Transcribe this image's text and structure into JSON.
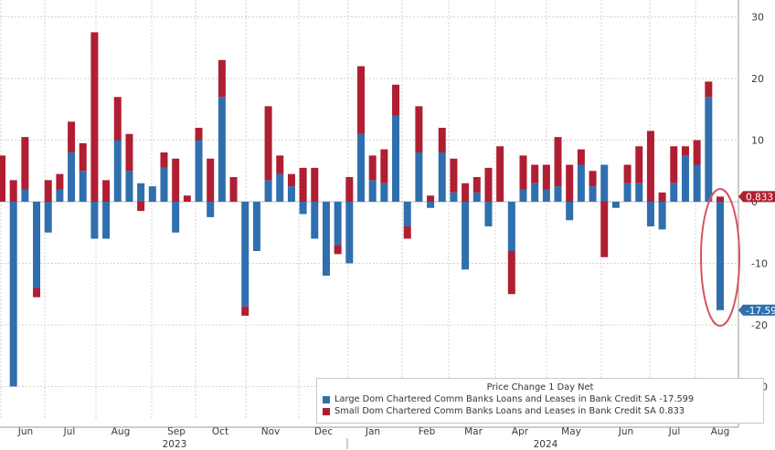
{
  "chart_data": {
    "type": "bar",
    "stacked": true,
    "title": "",
    "xlabel": "",
    "ylabel": "",
    "ylim": [
      -35,
      31
    ],
    "y_ticks": [
      30,
      20,
      10,
      0,
      -10,
      -20,
      -30
    ],
    "grid": true,
    "legend_placement": "bottom-right",
    "legend_title": "Price Change 1 Day Net",
    "x_month_labels": [
      "Jun",
      "Jul",
      "Aug",
      "Sep",
      "Oct",
      "Nov",
      "Dec",
      "Jan",
      "Feb",
      "Mar",
      "Apr",
      "May",
      "Jun",
      "Jul",
      "Aug"
    ],
    "x_year_labels": [
      "2023",
      "2024"
    ],
    "series": [
      {
        "name": "Large Dom Chartered Comm Banks Loans and Leases in Bank Credit SA",
        "last_value_label": "-17.599",
        "color": "#2f6fae",
        "values": [
          0,
          -30,
          2,
          -14,
          -5,
          2,
          8,
          5,
          -6,
          -6,
          10,
          5,
          3,
          2.5,
          5.5,
          -5,
          0,
          10,
          -2.5,
          17,
          0,
          -17,
          -8,
          3.5,
          4.5,
          2.5,
          -2,
          -6,
          -12,
          -7,
          -10,
          11,
          3.5,
          3,
          14,
          -4,
          8,
          -1,
          8,
          1.5,
          -11,
          1.5,
          -4,
          0,
          -8,
          2,
          3,
          2,
          2.5,
          -3,
          6,
          2.5,
          6,
          -1,
          3,
          3,
          -4,
          -4.5,
          3,
          7.5,
          6,
          17,
          -17.6
        ]
      },
      {
        "name": "Small Dom Chartered Comm Banks Loans and Leases in Bank Credit SA",
        "last_value_label": "0.833",
        "color": "#b01e32",
        "values": [
          7.5,
          3.5,
          8.5,
          -1.5,
          3.5,
          2.5,
          5,
          4.5,
          27.5,
          3.5,
          7,
          6,
          -1.5,
          0,
          2.5,
          7,
          1,
          2,
          7,
          6,
          4,
          -1.5,
          0,
          12,
          3,
          2,
          5.5,
          5.5,
          0,
          -1.5,
          4,
          11,
          4,
          5.5,
          5,
          -2,
          7.5,
          1,
          4,
          5.5,
          3,
          2.5,
          5.5,
          9,
          -7,
          5.5,
          3,
          4,
          8,
          6,
          2.5,
          2.5,
          -9,
          0,
          3,
          6,
          11.5,
          1.5,
          6,
          1.5,
          4,
          2.5,
          0.833
        ]
      }
    ]
  },
  "legend": {
    "title": "Price Change 1 Day Net",
    "items": [
      {
        "label": "Large Dom Chartered Comm Banks Loans and Leases in Bank Credit SA -17.599",
        "color": "#2f6fae"
      },
      {
        "label": "Small Dom Chartered Comm Banks Loans and Leases in Bank Credit SA 0.833",
        "color": "#b01e32"
      }
    ]
  },
  "value_tags": {
    "small_last": "0.833",
    "large_last": "-17.599"
  },
  "colors": {
    "blue": "#2f6fae",
    "red": "#b01e32",
    "grid": "#d3d3d3",
    "highlight": "#d8545f"
  }
}
